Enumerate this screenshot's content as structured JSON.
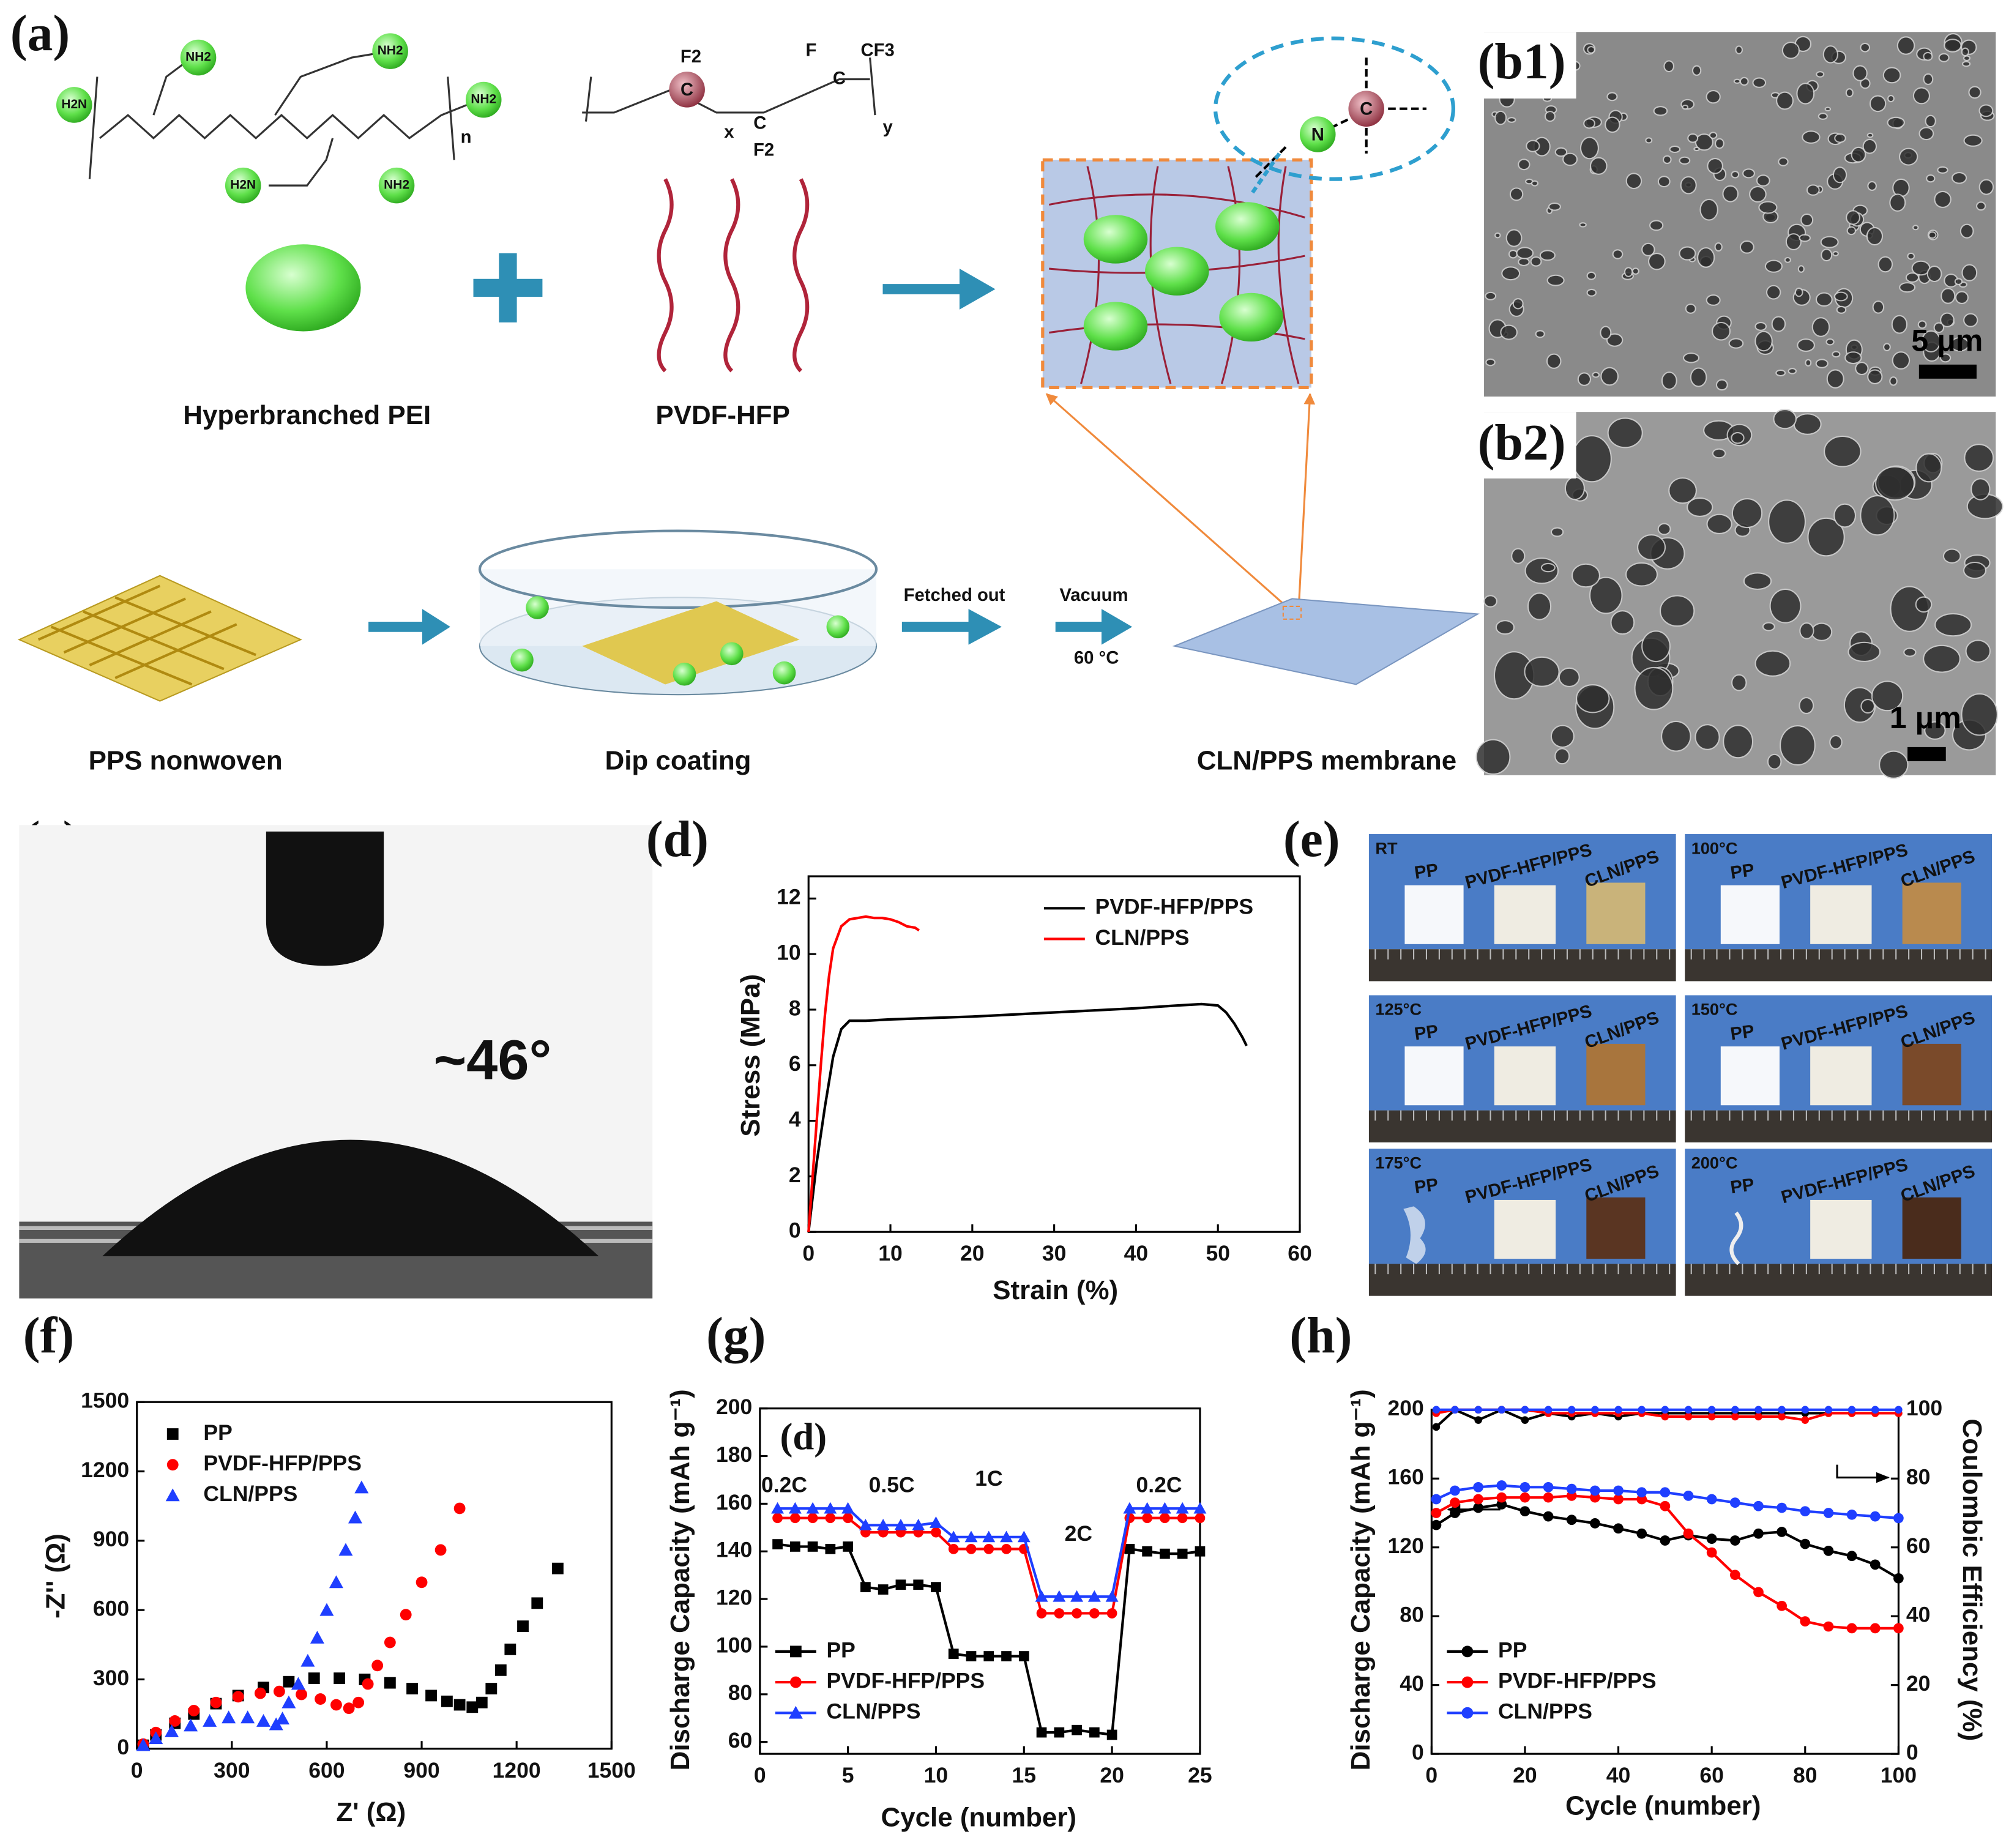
{
  "panel_labels": {
    "a": "(a)",
    "b1": "(b1)",
    "b2": "(b2)",
    "c": "(c)",
    "d": "(d)",
    "e": "(e)",
    "f": "(f)",
    "g": "(g)",
    "h": "(h)"
  },
  "scheme": {
    "pei_groups": [
      "NH2",
      "NH2",
      "H2N",
      "NH2",
      "H2N",
      "NH2"
    ],
    "pei_repeat": "n",
    "pvdf_atoms": [
      "F2",
      "C",
      "x",
      "C",
      "F2",
      "F",
      "CF3",
      "C",
      "y"
    ],
    "bond_atoms": [
      "N",
      "C"
    ],
    "pei_label": "Hyperbranched PEI",
    "pvdf_label": "PVDF-HFP",
    "nonwoven_label": "PPS nonwoven",
    "dip_label": "Dip coating",
    "membrane_label": "CLN/PPS membrane",
    "step1": "Fetched out",
    "step2": "Vacuum",
    "step2_temp": "60 °C"
  },
  "sem": {
    "b1_scale": "5 μm",
    "b2_scale": "1 μm"
  },
  "contact_angle": "~46°",
  "thermal": {
    "conditions": [
      "RT",
      "100°C",
      "125°C",
      "150°C",
      "175°C",
      "200°C"
    ],
    "samples": [
      "PP",
      "PVDF-HFP/PPS",
      "CLN/PPS"
    ]
  },
  "chart_data": [
    {
      "type": "line",
      "x_label": "Strain (%)",
      "y_label": "Stress (MPa)",
      "xlim": [
        0,
        60
      ],
      "xticks": [
        0,
        10,
        20,
        30,
        40,
        50,
        60
      ],
      "ylim": [
        0,
        12.8
      ],
      "yticks": [
        0,
        2,
        4,
        6,
        8,
        10,
        12
      ],
      "legend": "upper right",
      "series": [
        {
          "name": "PVDF-HFP/PPS",
          "color": "#000000",
          "x": [
            0,
            1,
            2,
            3,
            4,
            5,
            7,
            10,
            20,
            30,
            40,
            45,
            48,
            50,
            51,
            52,
            53,
            53.5
          ],
          "values": [
            0,
            2.5,
            4.5,
            6.3,
            7.3,
            7.6,
            7.6,
            7.65,
            7.75,
            7.9,
            8.05,
            8.15,
            8.2,
            8.15,
            7.9,
            7.5,
            7.0,
            6.7
          ]
        },
        {
          "name": "CLN/PPS",
          "color": "#ff0000",
          "x": [
            0,
            0.5,
            1,
            1.5,
            2,
            2.5,
            3,
            4,
            5,
            6,
            7,
            8,
            9,
            10,
            11,
            12,
            13,
            13.5
          ],
          "values": [
            0,
            2,
            4,
            6,
            7.8,
            9.2,
            10.2,
            11,
            11.25,
            11.3,
            11.35,
            11.3,
            11.3,
            11.25,
            11.15,
            11.0,
            10.95,
            10.85
          ]
        }
      ]
    },
    {
      "type": "scatter",
      "x_label": "Z' (Ω)",
      "y_label": "-Z'' (Ω)",
      "xlim": [
        0,
        1500
      ],
      "xticks": [
        0,
        300,
        600,
        900,
        1200,
        1500
      ],
      "ylim": [
        0,
        1500
      ],
      "yticks": [
        0,
        300,
        600,
        900,
        1200,
        1500
      ],
      "legend": "upper left",
      "series": [
        {
          "name": "PP",
          "color": "#000000",
          "marker": "square",
          "x": [
            20,
            60,
            120,
            180,
            250,
            320,
            400,
            480,
            560,
            640,
            720,
            800,
            870,
            930,
            980,
            1020,
            1060,
            1090,
            1120,
            1150,
            1180,
            1220,
            1265,
            1330
          ],
          "values": [
            15,
            60,
            110,
            150,
            195,
            230,
            265,
            290,
            305,
            305,
            300,
            285,
            260,
            230,
            205,
            190,
            180,
            200,
            260,
            340,
            430,
            530,
            630,
            780
          ]
        },
        {
          "name": "PVDF-HFP/PPS",
          "color": "#ff0000",
          "marker": "circle",
          "x": [
            20,
            60,
            120,
            180,
            250,
            320,
            390,
            450,
            520,
            580,
            630,
            670,
            700,
            730,
            760,
            800,
            850,
            900,
            960,
            1020
          ],
          "values": [
            20,
            70,
            120,
            165,
            200,
            225,
            240,
            248,
            235,
            215,
            190,
            175,
            200,
            280,
            360,
            460,
            580,
            720,
            860,
            1040
          ]
        },
        {
          "name": "CLN/PPS",
          "color": "#1f3fff",
          "marker": "triangle",
          "x": [
            20,
            60,
            110,
            170,
            230,
            290,
            350,
            400,
            440,
            460,
            480,
            510,
            540,
            570,
            600,
            630,
            660,
            690,
            710
          ],
          "values": [
            15,
            45,
            75,
            100,
            120,
            135,
            135,
            120,
            105,
            130,
            200,
            280,
            380,
            480,
            600,
            720,
            860,
            1000,
            1130
          ]
        }
      ]
    },
    {
      "type": "line",
      "markers": true,
      "x_label": "Cycle (number)",
      "y_label": "Discharge Capacity (mAh g⁻¹)",
      "xlim": [
        0,
        25
      ],
      "xticks": [
        0,
        5,
        10,
        15,
        20,
        25
      ],
      "ylim": [
        55,
        200
      ],
      "yticks": [
        60,
        80,
        100,
        120,
        140,
        160,
        180,
        200
      ],
      "legend": "lower left",
      "annotations": [
        "(d)",
        "0.2C",
        "0.5C",
        "1C",
        "2C",
        "0.2C"
      ],
      "x": [
        1,
        2,
        3,
        4,
        5,
        6,
        7,
        8,
        9,
        10,
        11,
        12,
        13,
        14,
        15,
        16,
        17,
        18,
        19,
        20,
        21,
        22,
        23,
        24,
        25
      ],
      "series": [
        {
          "name": "PP",
          "color": "#000000",
          "marker": "square",
          "values": [
            143,
            142,
            142,
            141,
            142,
            125,
            124,
            126,
            126,
            125,
            97,
            96,
            96,
            96,
            96,
            64,
            64,
            65,
            64,
            63,
            141,
            140,
            139,
            139,
            140
          ]
        },
        {
          "name": "PVDF-HFP/PPS",
          "color": "#ff0000",
          "marker": "circle",
          "values": [
            154,
            154,
            154,
            154,
            154,
            148,
            148,
            148,
            148,
            148,
            141,
            141,
            141,
            141,
            141,
            114,
            114,
            114,
            114,
            114,
            154,
            154,
            154,
            154,
            154
          ]
        },
        {
          "name": "CLN/PPS",
          "color": "#1f3fff",
          "marker": "triangle",
          "values": [
            158,
            158,
            158,
            158,
            158,
            151,
            151,
            151,
            151,
            152,
            146,
            146,
            146,
            146,
            146,
            121,
            121,
            121,
            121,
            121,
            158,
            158,
            158,
            158,
            158
          ]
        }
      ]
    },
    {
      "type": "line",
      "markers": true,
      "x_label": "Cycle (number)",
      "y_label": "Discharge Capacity (mAh g⁻¹)",
      "y2_label": "Coulombic Efficiency (%)",
      "xlim": [
        0,
        100
      ],
      "xticks": [
        0,
        20,
        40,
        60,
        80,
        100
      ],
      "ylim": [
        0,
        200
      ],
      "yticks": [
        0,
        40,
        80,
        120,
        160,
        200
      ],
      "y2lim": [
        0,
        100
      ],
      "y2ticks": [
        0,
        20,
        40,
        60,
        80,
        100
      ],
      "legend": "lower left",
      "x": [
        1,
        5,
        10,
        15,
        20,
        25,
        30,
        35,
        40,
        45,
        50,
        55,
        60,
        65,
        70,
        75,
        80,
        85,
        90,
        95,
        100
      ],
      "series": [
        {
          "name": "PP",
          "color": "#000000",
          "marker": "circle",
          "values": [
            133,
            140,
            143,
            145,
            141,
            138,
            136,
            134,
            131,
            128,
            124,
            127,
            125,
            124,
            128,
            129,
            122,
            118,
            115,
            110,
            102
          ]
        },
        {
          "name": "PVDF-HFP/PPS",
          "color": "#ff0000",
          "marker": "circle",
          "values": [
            140,
            146,
            148,
            149,
            149,
            149,
            150,
            149,
            148,
            148,
            144,
            128,
            117,
            104,
            94,
            86,
            77,
            74,
            73,
            73,
            73
          ]
        },
        {
          "name": "CLN/PPS",
          "color": "#1f3fff",
          "marker": "circle",
          "values": [
            148,
            153,
            155,
            156,
            155,
            155,
            154,
            153,
            153,
            152,
            152,
            150,
            148,
            146,
            144,
            143,
            141,
            140,
            139,
            138,
            137
          ]
        },
        {
          "color": "#000000",
          "marker": "circle",
          "axis": "y2",
          "values": [
            95,
            100,
            97,
            100,
            97,
            99,
            98,
            99,
            98,
            99,
            99,
            99,
            99,
            99,
            99,
            99,
            99,
            99,
            99,
            99,
            99
          ]
        },
        {
          "color": "#ff0000",
          "marker": "circle",
          "axis": "y2",
          "values": [
            99,
            100,
            100,
            100,
            100,
            99,
            99,
            99,
            99,
            99,
            98,
            98,
            98,
            98,
            98,
            98,
            97,
            99,
            99,
            99,
            99
          ]
        },
        {
          "color": "#1f3fff",
          "marker": "circle",
          "axis": "y2",
          "values": [
            100,
            100,
            100,
            100,
            100,
            100,
            100,
            100,
            100,
            100,
            100,
            100,
            100,
            100,
            100,
            100,
            100,
            100,
            100,
            100,
            100
          ]
        }
      ]
    }
  ]
}
